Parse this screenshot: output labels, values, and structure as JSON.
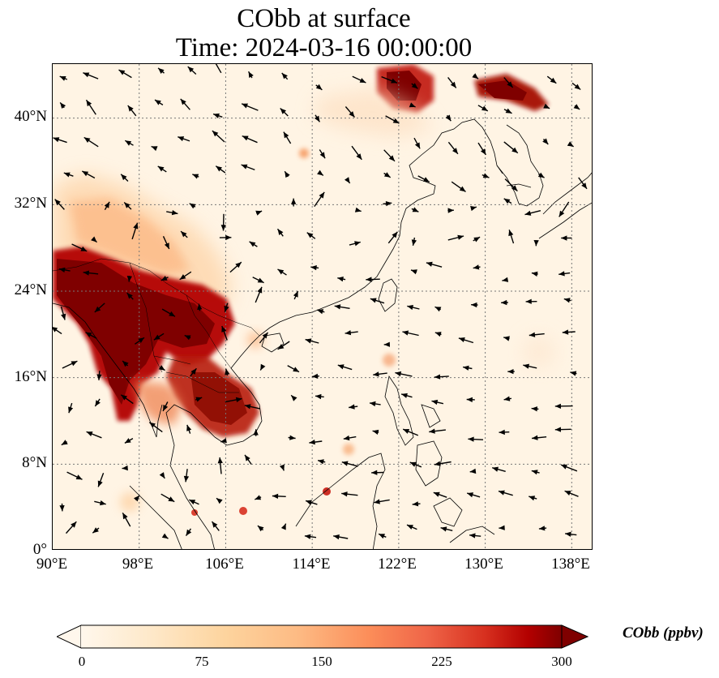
{
  "title": {
    "line1": "CObb at surface",
    "line2": "Time: 2024-03-16 00:00:00"
  },
  "map": {
    "lat_range": [
      0,
      45
    ],
    "lon_range": [
      90,
      140
    ],
    "lat_ticks": [
      "0°",
      "8°N",
      "16°N",
      "24°N",
      "32°N",
      "40°N"
    ],
    "lon_ticks": [
      "90°E",
      "98°E",
      "106°E",
      "114°E",
      "122°E",
      "130°E",
      "138°E"
    ],
    "gridlines": "dotted",
    "field_colors": {
      "low": "#fff5eb",
      "mid": "#fdae6b",
      "high": "#7f0000"
    }
  },
  "colorbar": {
    "label": "CObb (ppbv)",
    "ticks": [
      "0",
      "75",
      "150",
      "225",
      "300"
    ],
    "range": [
      0,
      300
    ],
    "extend": "both",
    "colormap": "OrRd"
  }
}
